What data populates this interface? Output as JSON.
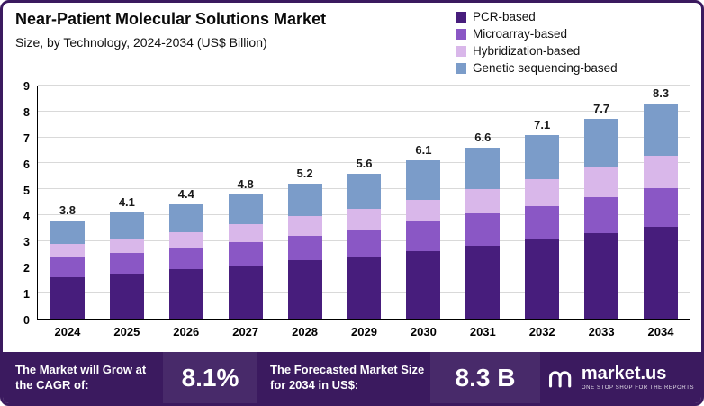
{
  "header": {
    "title": "Near-Patient Molecular Solutions Market",
    "subtitle": "Size, by Technology, 2024-2034 (US$ Billion)"
  },
  "chart_data": {
    "type": "bar",
    "stacked": true,
    "title": "Near-Patient Molecular Solutions Market",
    "subtitle": "Size, by Technology, 2024-2034 (US$ Billion)",
    "categories": [
      "2024",
      "2025",
      "2026",
      "2027",
      "2028",
      "2029",
      "2030",
      "2031",
      "2032",
      "2033",
      "2034"
    ],
    "totals": [
      3.8,
      4.1,
      4.4,
      4.8,
      5.2,
      5.6,
      6.1,
      6.6,
      7.1,
      7.7,
      8.3
    ],
    "series": [
      {
        "name": "PCR-based",
        "color": "#471d7c",
        "values": [
          1.6,
          1.75,
          1.9,
          2.05,
          2.25,
          2.4,
          2.6,
          2.8,
          3.05,
          3.3,
          3.55
        ]
      },
      {
        "name": "Microarray-based",
        "color": "#8a57c5",
        "values": [
          0.75,
          0.8,
          0.8,
          0.9,
          0.95,
          1.05,
          1.15,
          1.25,
          1.3,
          1.4,
          1.5
        ]
      },
      {
        "name": "Hybridization-based",
        "color": "#d9b7ea",
        "values": [
          0.55,
          0.55,
          0.65,
          0.7,
          0.75,
          0.8,
          0.85,
          0.95,
          1.05,
          1.15,
          1.25
        ]
      },
      {
        "name": "Genetic sequencing-based",
        "color": "#7b9cc9",
        "values": [
          0.9,
          1.0,
          1.05,
          1.15,
          1.25,
          1.35,
          1.5,
          1.6,
          1.7,
          1.85,
          2.0
        ]
      }
    ],
    "ylim": [
      0,
      9
    ],
    "yticks": [
      0,
      1,
      2,
      3,
      4,
      5,
      6,
      7,
      8,
      9
    ],
    "grid": true,
    "legend_position": "top-right"
  },
  "banner": {
    "cagr_label": "The Market will Grow at the CAGR of:",
    "cagr_value": "8.1%",
    "forecast_label": "The Forecasted Market Size for 2034 in US$:",
    "forecast_value": "8.3 B",
    "logo_text": "market.us",
    "logo_tagline": "One Stop Shop For The Reports"
  },
  "colors": {
    "frame": "#3b1a5f",
    "banner_bg": "#3b1a5f",
    "axis": "#000000",
    "gridline": "#d9d9d9"
  }
}
